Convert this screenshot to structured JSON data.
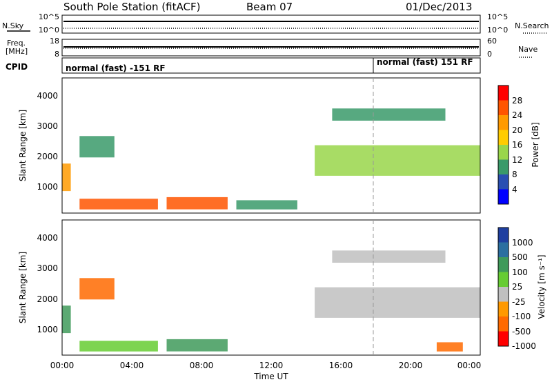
{
  "header": {
    "station": "South Pole Station (fitACF)",
    "beam": "Beam 07",
    "date": "01/Dec/2013"
  },
  "top_panels": {
    "nsky_label": "N.Sky",
    "nsky_ticks": [
      "10^5",
      "10^0"
    ],
    "nsearch_label": "N.Search",
    "nsearch_ticks": [
      "10^5",
      "10^0"
    ],
    "freq_label_1": "Freq.",
    "freq_label_2": "[MHz]",
    "freq_ticks": [
      "18",
      "8"
    ],
    "nave_label": "Nave",
    "nave_ticks": [
      "60",
      "0"
    ],
    "cpid_label": "CPID",
    "cpid_segments": [
      {
        "text": "normal (fast) -151 RF",
        "start_hour": 0
      },
      {
        "text": "normal (fast) 151 RF",
        "start_hour": 18
      }
    ]
  },
  "axes": {
    "xlabel": "Time UT",
    "xticks": [
      "00:00",
      "04:00",
      "08:00",
      "12:00",
      "16:00",
      "20:00",
      "00:00"
    ],
    "xrange_hours": [
      0,
      24
    ],
    "ylabel": "Slant Range [km]",
    "yticks": [
      "1000",
      "2000",
      "3000",
      "4000"
    ],
    "yrange_km": [
      180,
      4600
    ]
  },
  "colorbars": {
    "power": {
      "label": "Power [dB]",
      "ticks": [
        "28",
        "24",
        "20",
        "16",
        "12",
        "8",
        "4"
      ],
      "colors": [
        "#ff0000",
        "#ff5500",
        "#ff9a00",
        "#ffcc00",
        "#99d64a",
        "#3a9a6a",
        "#2a4fb2",
        "#0000ff"
      ]
    },
    "velocity": {
      "label": "Velocity [m s⁻¹]",
      "ticks": [
        "1000",
        "500",
        "100",
        "25",
        "-25",
        "-100",
        "-500",
        "-1000"
      ],
      "colors": [
        "#1f3fa0",
        "#2b6fa0",
        "#3f9a5a",
        "#66cc33",
        "#c0c0c0",
        "#ff9900",
        "#ff6a00",
        "#ff0000"
      ]
    }
  },
  "chart_data": [
    {
      "type": "heatmap",
      "title": "Power",
      "xlabel": "Time UT",
      "ylabel": "Slant Range [km]",
      "colorbar_label": "Power [dB]",
      "regions": [
        {
          "t0": 0.0,
          "t1": 0.5,
          "r0": 900,
          "r1": 1800,
          "value": 20
        },
        {
          "t0": 1.0,
          "t1": 5.5,
          "r0": 300,
          "r1": 650,
          "value": 24
        },
        {
          "t0": 6.0,
          "t1": 9.5,
          "r0": 300,
          "r1": 700,
          "value": 26
        },
        {
          "t0": 10.0,
          "t1": 13.5,
          "r0": 300,
          "r1": 600,
          "value": 10
        },
        {
          "t0": 14.5,
          "t1": 24.0,
          "r0": 1400,
          "r1": 2400,
          "value": 12
        },
        {
          "t0": 15.5,
          "t1": 22.0,
          "r0": 3200,
          "r1": 3600,
          "value": 8
        },
        {
          "t0": 1.0,
          "t1": 3.0,
          "r0": 2000,
          "r1": 2700,
          "value": 10
        }
      ]
    },
    {
      "type": "heatmap",
      "title": "Velocity",
      "xlabel": "Time UT",
      "ylabel": "Slant Range [km]",
      "colorbar_label": "Velocity [m s⁻¹]",
      "regions": [
        {
          "t0": 0.0,
          "t1": 0.5,
          "r0": 900,
          "r1": 1800,
          "value": 300
        },
        {
          "t0": 1.0,
          "t1": 5.5,
          "r0": 300,
          "r1": 650,
          "value": 80
        },
        {
          "t0": 6.0,
          "t1": 9.5,
          "r0": 300,
          "r1": 700,
          "value": 120
        },
        {
          "t0": 14.5,
          "t1": 24.0,
          "r0": 1400,
          "r1": 2400,
          "value": 0
        },
        {
          "t0": 15.5,
          "t1": 22.0,
          "r0": 3200,
          "r1": 3600,
          "value": 0
        },
        {
          "t0": 1.0,
          "t1": 3.0,
          "r0": 2000,
          "r1": 2700,
          "value": -300
        },
        {
          "t0": 21.5,
          "t1": 23.0,
          "r0": 300,
          "r1": 600,
          "value": -400
        }
      ]
    }
  ]
}
